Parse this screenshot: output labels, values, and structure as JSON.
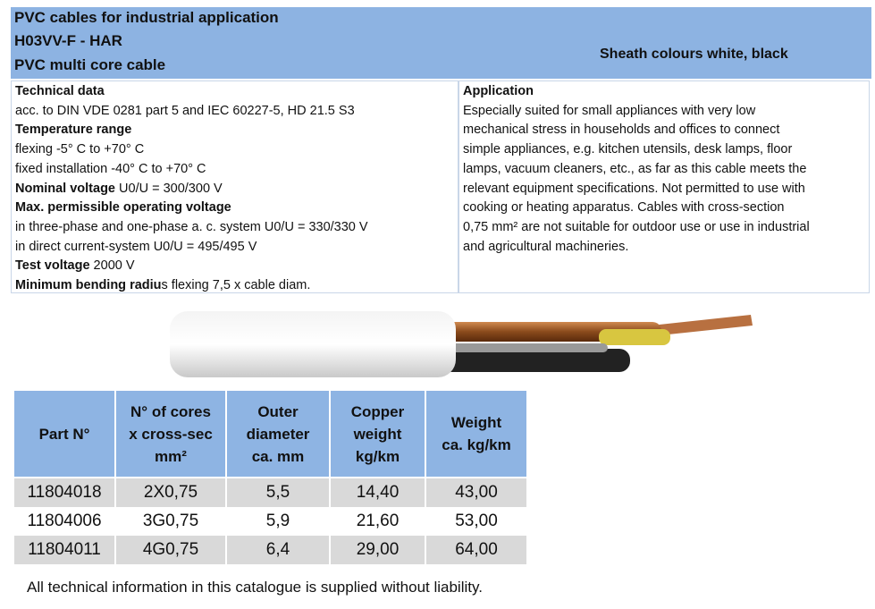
{
  "header": {
    "title_lines": [
      "PVC cables for industrial application",
      "H03VV-F - HAR",
      "PVC multi core cable"
    ],
    "sheath": "Sheath colours white, black"
  },
  "technical": {
    "lines": [
      [
        {
          "b": true,
          "t": "Technical data"
        }
      ],
      [
        {
          "b": false,
          "t": "acc. to DIN VDE 0281 part 5 and IEC 60227-5, HD 21.5 S3"
        }
      ],
      [
        {
          "b": true,
          "t": "Temperature range"
        }
      ],
      [
        {
          "b": false,
          "t": "flexing -5° C to +70° C"
        }
      ],
      [
        {
          "b": false,
          "t": "fixed installation -40° C to +70° C"
        }
      ],
      [
        {
          "b": true,
          "t": "Nominal voltage"
        },
        {
          "b": false,
          "t": " U0/U = 300/300 V"
        }
      ],
      [
        {
          "b": true,
          "t": "Max. permissible operating voltage"
        }
      ],
      [
        {
          "b": false,
          "t": "in three-phase and one-phase a. c. system U0/U = 330/330 V"
        }
      ],
      [
        {
          "b": false,
          "t": "in direct current-system U0/U = 495/495 V"
        }
      ],
      [
        {
          "b": true,
          "t": "Test voltage"
        },
        {
          "b": false,
          "t": " 2000 V"
        }
      ],
      [
        {
          "b": true,
          "t": "Minimum bending radiu"
        },
        {
          "b": false,
          "t": "s flexing 7,5 x cable diam."
        }
      ]
    ]
  },
  "application": {
    "title": "Application",
    "lines": [
      "Especially suited for small appliances with very low",
      "mechanical stress in households and offices to connect",
      "simple appliances, e.g. kitchen utensils, desk lamps, floor",
      "lamps, vacuum cleaners, etc., as far as this cable meets the",
      "relevant equipment specifications. Not permitted to use with",
      "cooking or heating apparatus. Cables with cross-section",
      "0,75 mm² are not suitable for outdoor use or use in industrial",
      "and agricultural machineries."
    ]
  },
  "table": {
    "headers": [
      [
        "Part N°"
      ],
      [
        "N° of cores",
        "x cross-sec",
        "mm²"
      ],
      [
        "Outer",
        "diameter",
        "ca. mm"
      ],
      [
        "Copper",
        "weight",
        "kg/km"
      ],
      [
        "Weight",
        "ca. kg/km"
      ]
    ],
    "rows": [
      [
        "11804018",
        "2X0,75",
        "5,5",
        "14,40",
        "43,00"
      ],
      [
        "11804006",
        "3G0,75",
        "5,9",
        "21,60",
        "53,00"
      ],
      [
        "11804011",
        "4G0,75",
        "6,4",
        "29,00",
        "64,00"
      ]
    ]
  },
  "colors": {
    "header_blue": "#8db3e2",
    "row_gray": "#d9d9d9"
  },
  "footer": "All technical information in this catalogue is supplied without liability."
}
